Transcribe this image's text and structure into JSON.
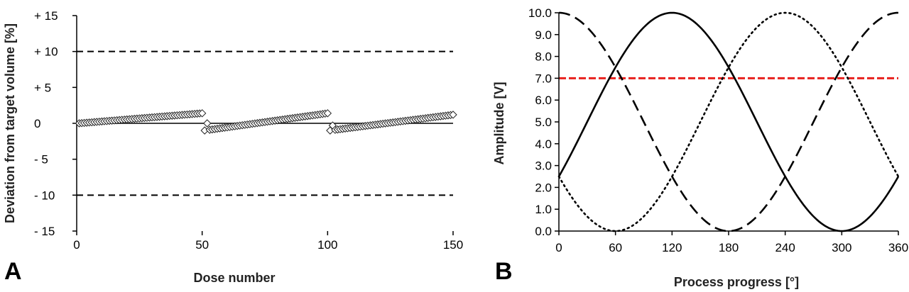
{
  "chart_data": [
    {
      "panel_label": "A",
      "type": "scatter",
      "xlabel": "Dose number",
      "ylabel": "Deviation from target volume [%]",
      "xlim": [
        0,
        150
      ],
      "ylim": [
        -15,
        15
      ],
      "x_ticks": [
        0,
        50,
        100,
        150
      ],
      "x_tick_labels": [
        "0",
        "50",
        "100",
        "150"
      ],
      "y_ticks": [
        15,
        10,
        5,
        0,
        -5,
        -10,
        -15
      ],
      "y_tick_labels": [
        "+ 15",
        "+ 10",
        "+  5",
        "0",
        "-  5",
        "- 10",
        "- 15"
      ],
      "reference_lines": [
        {
          "y": 10,
          "style": "dashed",
          "color": "#000000"
        },
        {
          "y": -10,
          "style": "dashed",
          "color": "#000000"
        }
      ],
      "marker": "diamond-open",
      "series": [
        {
          "segments": [
            {
              "x_start": 1,
              "x_end": 50,
              "y_start": 0.0,
              "y_end": 1.4
            },
            {
              "x_start": 51,
              "x_end": 100,
              "y_start": -1.0,
              "y_end": 1.4,
              "first_points": [
                -1.0,
                0.0
              ]
            },
            {
              "x_start": 101,
              "x_end": 150,
              "y_start": -1.0,
              "y_end": 1.2,
              "first_points": [
                -1.0,
                -0.3
              ]
            }
          ]
        }
      ]
    },
    {
      "panel_label": "B",
      "type": "line",
      "xlabel": "Process progress [°]",
      "ylabel": "Amplitude [V]",
      "xlim": [
        0,
        360
      ],
      "ylim": [
        0,
        10
      ],
      "x_ticks": [
        0,
        60,
        120,
        180,
        240,
        300,
        360
      ],
      "x_tick_labels": [
        "0",
        "60",
        "120",
        "180",
        "240",
        "300",
        "360"
      ],
      "y_ticks": [
        0,
        1,
        2,
        3,
        4,
        5,
        6,
        7,
        8,
        9,
        10
      ],
      "y_tick_labels": [
        "0.0",
        "1.0",
        "2.0",
        "3.0",
        "4.0",
        "5.0",
        "6.0",
        "7.0",
        "8.0",
        "9.0",
        "10.0"
      ],
      "reference_lines": [
        {
          "y": 7.0,
          "style": "dashed",
          "color": "#e8201c"
        }
      ],
      "series": [
        {
          "style": "solid",
          "color": "#000000",
          "formula": "5 + 5*sin(x-30°)",
          "peak_x": 120,
          "x": [
            0,
            30,
            60,
            90,
            120,
            150,
            180,
            210,
            240,
            270,
            300,
            330,
            360
          ],
          "values": [
            2.5,
            5.0,
            7.5,
            9.33,
            10.0,
            9.33,
            7.5,
            5.0,
            2.5,
            0.67,
            0.0,
            0.67,
            2.5
          ]
        },
        {
          "style": "dashed",
          "color": "#000000",
          "formula": "5 + 5*cos(x)",
          "peak_x": 0,
          "x": [
            0,
            30,
            60,
            90,
            120,
            150,
            180,
            210,
            240,
            270,
            300,
            330,
            360
          ],
          "values": [
            10.0,
            9.33,
            7.5,
            5.0,
            2.5,
            0.67,
            0.0,
            0.67,
            2.5,
            5.0,
            7.5,
            9.33,
            10.0
          ]
        },
        {
          "style": "dotted",
          "color": "#000000",
          "formula": "5 + 5*sin(x-150°)",
          "peak_x": 240,
          "x": [
            0,
            30,
            60,
            90,
            120,
            150,
            180,
            210,
            240,
            270,
            300,
            330,
            360
          ],
          "values": [
            2.5,
            0.67,
            0.0,
            0.67,
            2.5,
            5.0,
            7.5,
            9.33,
            10.0,
            9.33,
            7.5,
            5.0,
            2.5
          ]
        }
      ]
    }
  ]
}
